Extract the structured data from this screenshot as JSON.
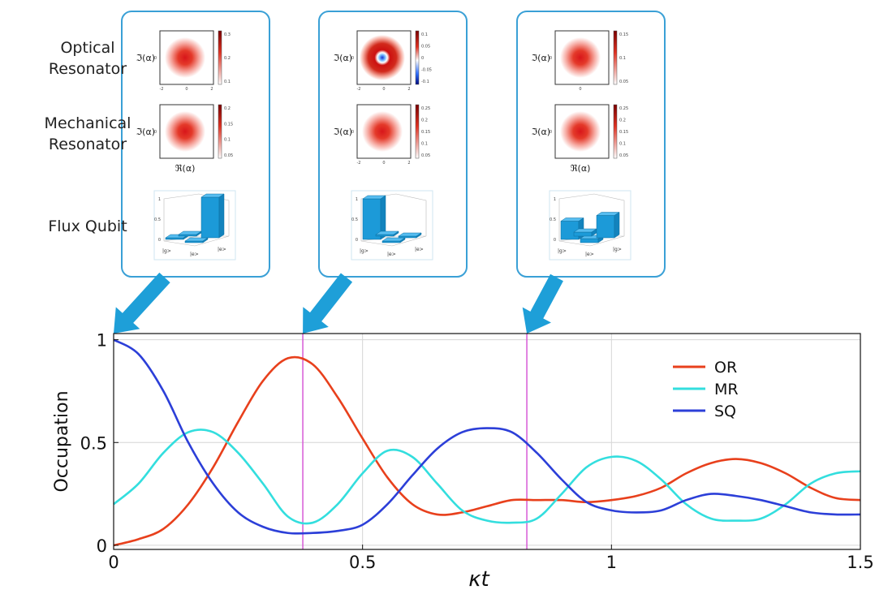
{
  "row_labels": {
    "optical": "Optical\nResonator",
    "mechanical": "Mechanical\nResonator",
    "flux": "Flux Qubit"
  },
  "panel_text": {
    "im_label": "ℑ(α)",
    "re_label": "ℜ(α)",
    "ket_g": "|g>",
    "ket_e": "|e>"
  },
  "panels": [
    {
      "time": 0,
      "optical": {
        "kind": "gauss",
        "cbar_ticks": [
          "0.3",
          "0.2",
          "0.1"
        ],
        "axis_ticks": [
          "-2",
          "0",
          "2"
        ]
      },
      "mechanical": {
        "kind": "gauss",
        "cbar_ticks": [
          "0.2",
          "0.15",
          "0.1",
          "0.05"
        ],
        "axis_ticks": []
      },
      "qubit": {
        "populations": [
          0.0,
          0.0,
          0.0,
          1.0
        ],
        "zticks": [
          "1",
          "0.5",
          "0"
        ],
        "ket_labels": [
          "|g>",
          "|e>",
          "|e>"
        ]
      }
    },
    {
      "time": 0.38,
      "optical": {
        "kind": "ring",
        "cbar_ticks": [
          "0.1",
          "0.05",
          "0",
          "-0.05",
          "-0.1"
        ],
        "axis_ticks": [
          "-2",
          "0",
          "2"
        ]
      },
      "mechanical": {
        "kind": "gauss",
        "cbar_ticks": [
          "0.25",
          "0.2",
          "0.15",
          "0.1",
          "0.05"
        ],
        "axis_ticks": [
          "-2",
          "0",
          "2"
        ]
      },
      "qubit": {
        "populations": [
          1.0,
          0.0,
          0.0,
          0.0
        ],
        "zticks": [
          "1",
          "0.5",
          "0"
        ],
        "ket_labels": [
          "|g>",
          "|e>",
          "|e>"
        ]
      }
    },
    {
      "time": 0.83,
      "optical": {
        "kind": "gauss",
        "cbar_ticks": [
          "0.15",
          "0.1",
          "0.05"
        ],
        "axis_ticks": [
          "0"
        ]
      },
      "mechanical": {
        "kind": "gauss",
        "cbar_ticks": [
          "0.25",
          "0.2",
          "0.15",
          "0.1",
          "0.05"
        ],
        "axis_ticks": []
      },
      "qubit": {
        "populations": [
          0.45,
          0.1,
          0.1,
          0.55
        ],
        "zticks": [
          "1",
          "0.5",
          "0"
        ],
        "ket_labels": [
          "|g>",
          "|e>",
          "|g>"
        ]
      }
    }
  ],
  "colors": {
    "panel_border": "#3aa0d6",
    "arrow": "#1e9fd8",
    "marker_line": "#d65ad6",
    "bar_fill": "#1c9ad8"
  },
  "chart_data": {
    "type": "line",
    "xlabel": "κt",
    "ylabel": "Occupation",
    "xlim": [
      0,
      1.5
    ],
    "ylim": [
      -0.02,
      1.03
    ],
    "x_ticks": [
      "0",
      "0.5",
      "1",
      "1.5"
    ],
    "y_ticks": [
      "0",
      "0.5",
      "1"
    ],
    "grid": true,
    "legend_position": "top-right",
    "markers": [
      0.38,
      0.83
    ],
    "x": [
      0,
      0.05,
      0.1,
      0.15,
      0.2,
      0.25,
      0.3,
      0.35,
      0.4,
      0.45,
      0.5,
      0.55,
      0.6,
      0.65,
      0.7,
      0.75,
      0.8,
      0.85,
      0.9,
      0.95,
      1.0,
      1.05,
      1.1,
      1.15,
      1.2,
      1.25,
      1.3,
      1.35,
      1.4,
      1.45,
      1.5
    ],
    "series": [
      {
        "name": "OR",
        "color": "#e8401c",
        "values": [
          0.0,
          0.03,
          0.08,
          0.2,
          0.38,
          0.6,
          0.8,
          0.91,
          0.88,
          0.72,
          0.52,
          0.33,
          0.2,
          0.15,
          0.16,
          0.19,
          0.22,
          0.22,
          0.22,
          0.21,
          0.22,
          0.24,
          0.28,
          0.35,
          0.4,
          0.42,
          0.4,
          0.35,
          0.28,
          0.23,
          0.22
        ]
      },
      {
        "name": "MR",
        "color": "#33dede",
        "values": [
          0.2,
          0.3,
          0.45,
          0.55,
          0.55,
          0.45,
          0.3,
          0.14,
          0.11,
          0.2,
          0.35,
          0.46,
          0.43,
          0.3,
          0.17,
          0.12,
          0.11,
          0.13,
          0.25,
          0.38,
          0.43,
          0.41,
          0.32,
          0.2,
          0.13,
          0.12,
          0.13,
          0.2,
          0.3,
          0.35,
          0.36
        ]
      },
      {
        "name": "SQ",
        "color": "#2c3fd8",
        "values": [
          1.0,
          0.93,
          0.75,
          0.5,
          0.3,
          0.16,
          0.09,
          0.06,
          0.06,
          0.07,
          0.1,
          0.2,
          0.34,
          0.47,
          0.55,
          0.57,
          0.55,
          0.45,
          0.32,
          0.21,
          0.17,
          0.16,
          0.17,
          0.22,
          0.25,
          0.24,
          0.22,
          0.19,
          0.16,
          0.15,
          0.15
        ]
      }
    ]
  }
}
